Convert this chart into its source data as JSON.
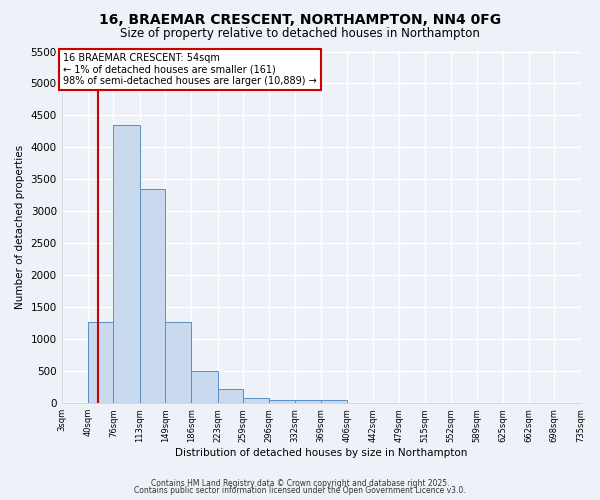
{
  "title": "16, BRAEMAR CRESCENT, NORTHAMPTON, NN4 0FG",
  "subtitle": "Size of property relative to detached houses in Northampton",
  "xlabel": "Distribution of detached houses by size in Northampton",
  "ylabel": "Number of detached properties",
  "bar_color": "#c9d9ee",
  "bar_edge_color": "#5a8fc0",
  "background_color": "#eef2f8",
  "grid_color": "#ffffff",
  "marker_line_color": "#cc0000",
  "marker_value": 54,
  "annotation_title": "16 BRAEMAR CRESCENT: 54sqm",
  "annotation_line1": "← 1% of detached houses are smaller (161)",
  "annotation_line2": "98% of semi-detached houses are larger (10,889) →",
  "bins": [
    3,
    40,
    76,
    113,
    149,
    186,
    223,
    259,
    296,
    332,
    369,
    406,
    442,
    479,
    515,
    552,
    589,
    625,
    662,
    698,
    735
  ],
  "counts": [
    0,
    1270,
    4350,
    3350,
    1270,
    500,
    220,
    80,
    55,
    55,
    55,
    0,
    0,
    0,
    0,
    0,
    0,
    0,
    0,
    0
  ],
  "ylim": [
    0,
    5500
  ],
  "yticks": [
    0,
    500,
    1000,
    1500,
    2000,
    2500,
    3000,
    3500,
    4000,
    4500,
    5000,
    5500
  ],
  "footer1": "Contains HM Land Registry data © Crown copyright and database right 2025.",
  "footer2": "Contains public sector information licensed under the Open Government Licence v3.0."
}
